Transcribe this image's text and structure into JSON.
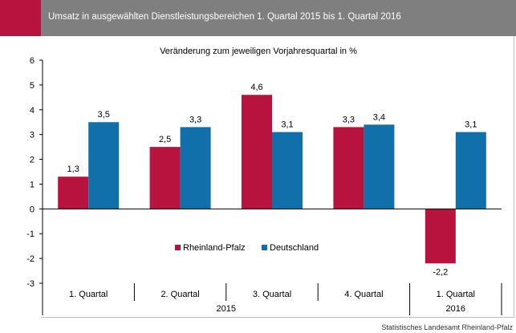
{
  "header": {
    "title": "Umsatz in ausgewählten Dienstleistungsbereichen 1. Quartal 2015 bis 1. Quartal 2016"
  },
  "source": "Statistisches Landesamt Rheinland-Pfalz",
  "chart_data": {
    "type": "bar",
    "title": "Veränderung zum jeweiligen Vorjahresquartal  in %",
    "categories": [
      "1. Quartal",
      "2. Quartal",
      "3. Quartal",
      "4. Quartal",
      "1. Quartal"
    ],
    "groups": [
      {
        "label": "2015",
        "span": [
          0,
          3
        ]
      },
      {
        "label": "2016",
        "span": [
          4,
          4
        ]
      }
    ],
    "series": [
      {
        "name": "Rheinland-Pfalz",
        "color": "#b8123f",
        "values": [
          1.3,
          2.5,
          4.6,
          3.3,
          -2.2
        ],
        "labels": [
          "1,3",
          "2,5",
          "4,6",
          "3,3",
          "-2,2"
        ]
      },
      {
        "name": "Deutschland",
        "color": "#1170a9",
        "values": [
          3.5,
          3.3,
          3.1,
          3.4,
          3.1
        ],
        "labels": [
          "3,5",
          "3,3",
          "3,1",
          "3,4",
          "3,1"
        ]
      }
    ],
    "ylim": [
      -3,
      6
    ],
    "yticks": [
      -3,
      -2,
      -1,
      0,
      1,
      2,
      3,
      4,
      5,
      6
    ],
    "ytick_labels": [
      "-3",
      "-2",
      "-1",
      "0",
      "1",
      "2",
      "3",
      "4",
      "5",
      "6"
    ],
    "legend_position": "lower-middle",
    "grid": false
  }
}
